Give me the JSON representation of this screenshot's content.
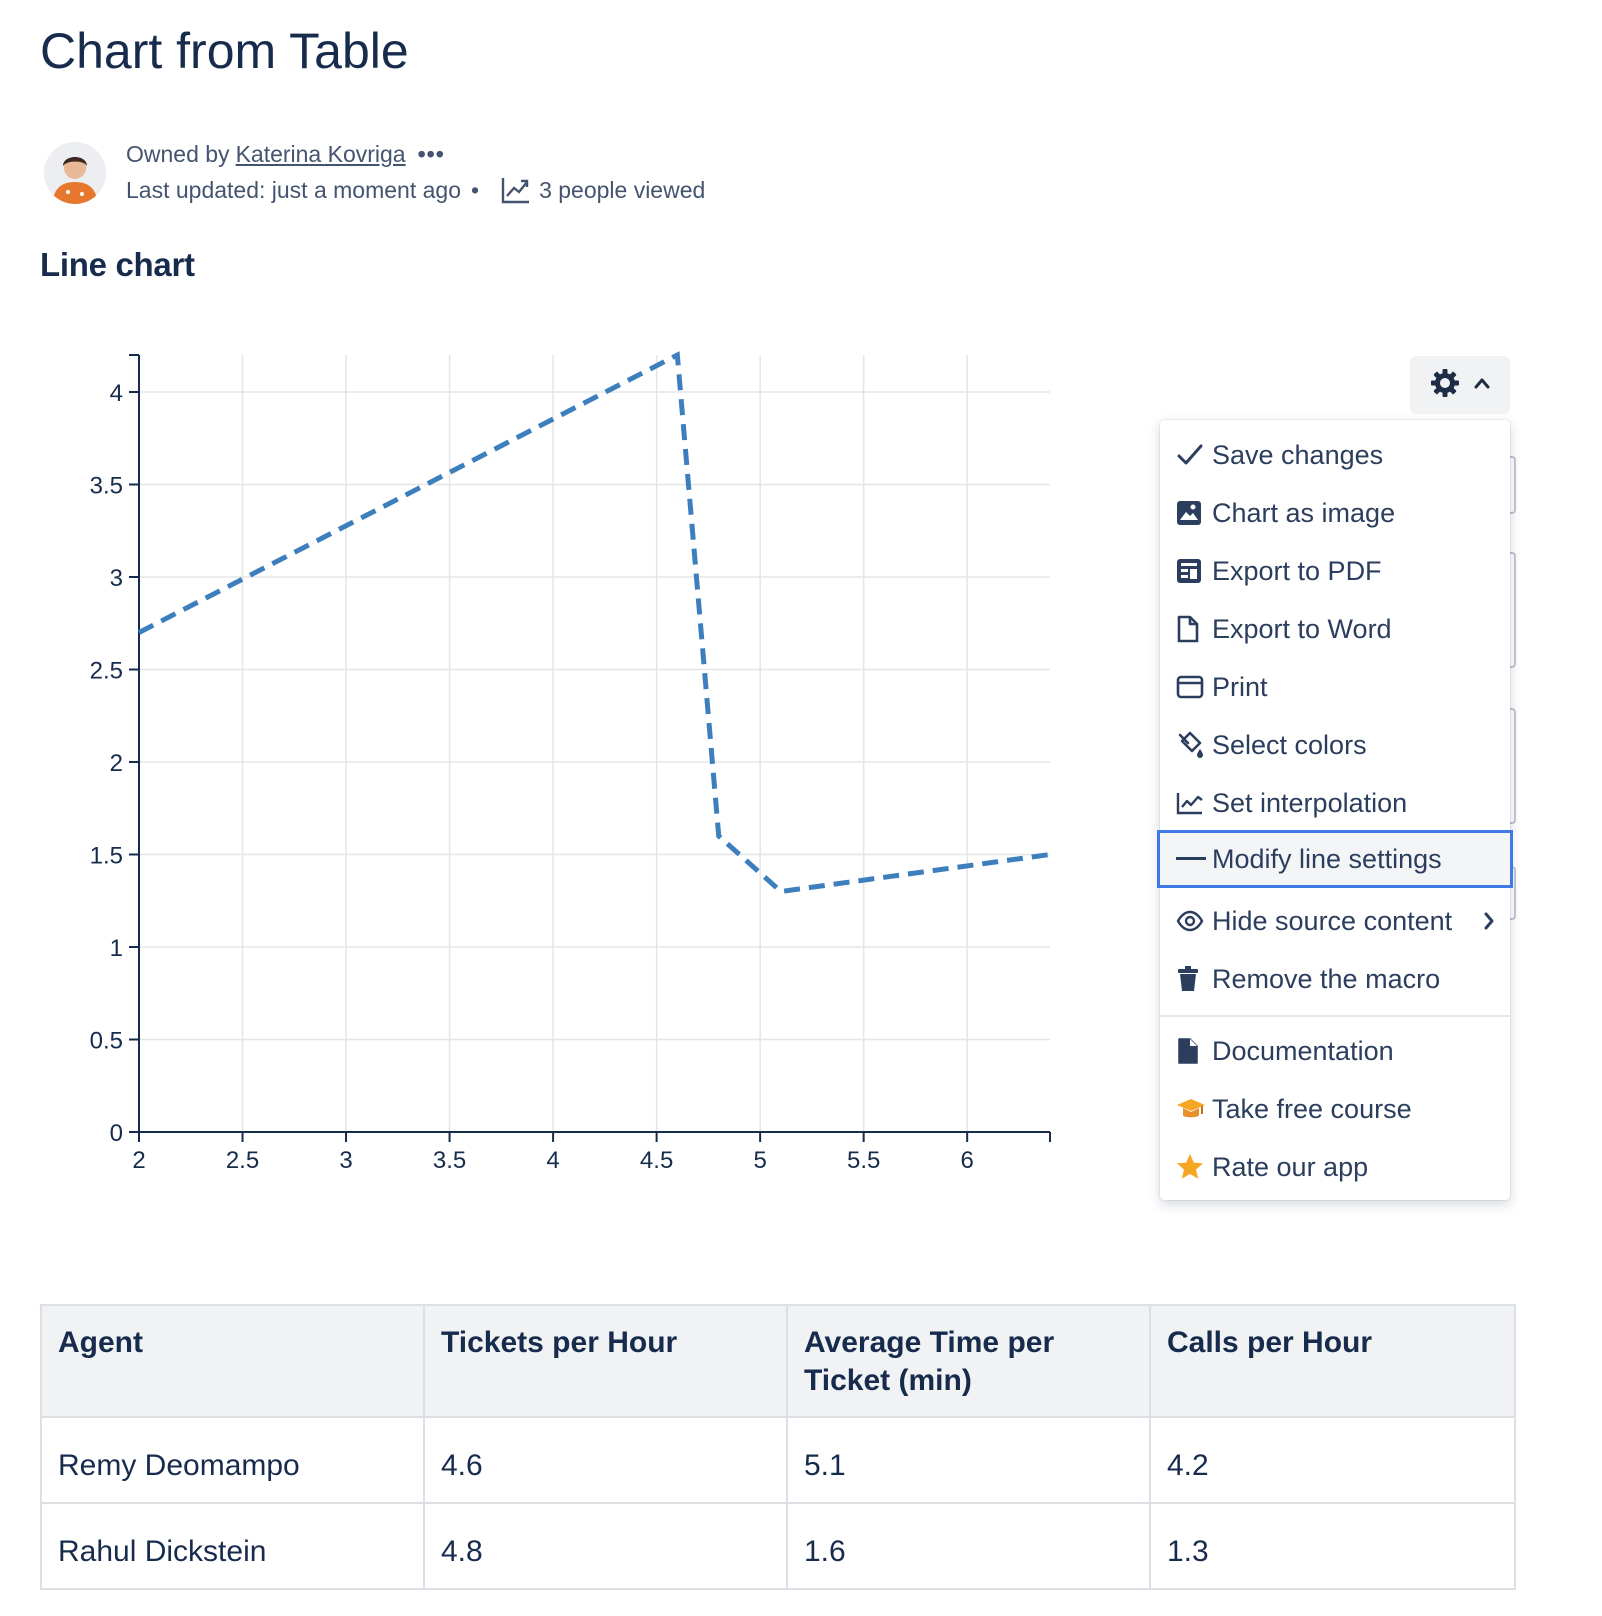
{
  "page": {
    "title": "Chart from Table",
    "byline": {
      "owned_by_label": "Owned by",
      "owner_name": "Katerina Kovriga",
      "more_label": "•••",
      "last_updated": "Last updated: just a moment ago",
      "separator": "•",
      "views": "3 people viewed"
    },
    "section_heading": "Line chart"
  },
  "chart_data": {
    "type": "line",
    "series": [
      {
        "x": [
          2,
          4.6,
          4.8,
          5.1,
          6.4
        ],
        "y": [
          2.7,
          4.2,
          1.6,
          1.3,
          1.5
        ],
        "line_style": "dashed",
        "color": "#3d7fbd"
      }
    ],
    "x_ticks": [
      "2",
      "2.5",
      "3",
      "3.5",
      "4",
      "4.5",
      "5",
      "5.5",
      "6"
    ],
    "y_ticks": [
      "0",
      "0.5",
      "1",
      "1.5",
      "2",
      "2.5",
      "3",
      "3.5",
      "4"
    ],
    "xlim": [
      2,
      6.4
    ],
    "ylim": [
      0,
      4.2
    ],
    "grid": true
  },
  "chart_menu": {
    "gear_icon": "gear-icon",
    "items": [
      {
        "label": "Save changes",
        "icon": "check-icon"
      },
      {
        "label": "Chart as image",
        "icon": "image-icon"
      },
      {
        "label": "Export to PDF",
        "icon": "pdf-icon"
      },
      {
        "label": "Export to Word",
        "icon": "document-icon"
      },
      {
        "label": "Print",
        "icon": "print-icon"
      },
      {
        "label": "Select colors",
        "icon": "paint-bucket-icon"
      },
      {
        "label": "Set interpolation",
        "icon": "line-graph-icon"
      },
      {
        "label": "Modify line settings",
        "icon": "line-icon",
        "active": true
      },
      {
        "label": "Hide source content",
        "icon": "eye-icon",
        "has_submenu": true
      },
      {
        "label": "Remove the macro",
        "icon": "trash-icon"
      }
    ],
    "secondary_items": [
      {
        "label": "Documentation",
        "icon": "file-icon"
      },
      {
        "label": "Take free course",
        "icon": "graduation-cap-icon"
      },
      {
        "label": "Rate our app",
        "icon": "star-icon"
      }
    ],
    "accent_color": "#3d7ae5"
  },
  "table": {
    "headers": [
      "Agent",
      "Tickets per Hour",
      "Average Time per Ticket (min)",
      "Calls per Hour"
    ],
    "rows": [
      [
        "Remy Deomampo",
        "4.6",
        "5.1",
        "4.2"
      ],
      [
        "Rahul Dickstein",
        "4.8",
        "1.6",
        "1.3"
      ]
    ]
  }
}
